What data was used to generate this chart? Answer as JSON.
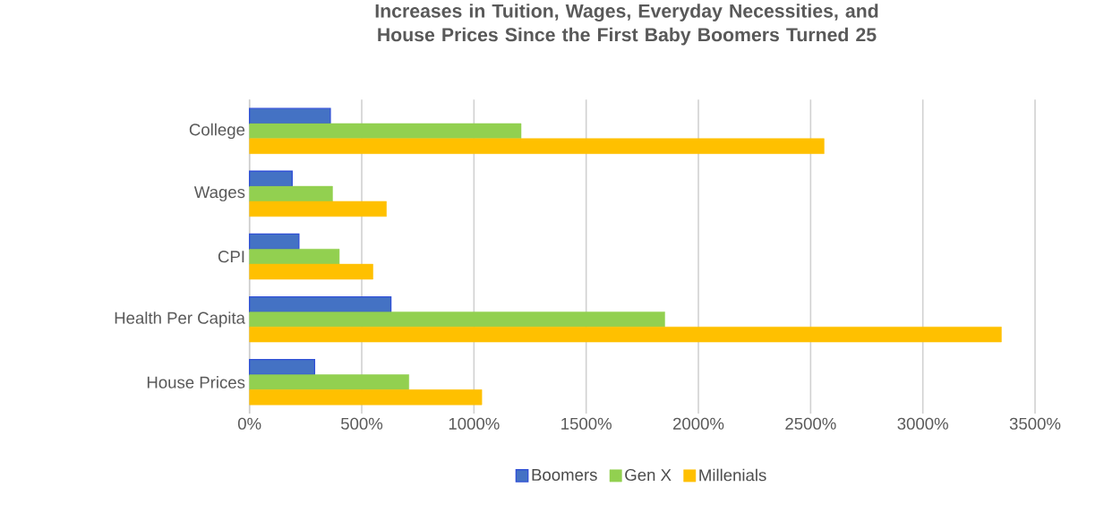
{
  "chart_data": {
    "type": "bar",
    "orientation": "horizontal",
    "title": "Increases in Tuition, Wages, Everyday Necessities, and House Prices Since the First Baby Boomers Turned 25",
    "categories": [
      "College",
      "Wages",
      "CPI",
      "Health Per Capita",
      "House Prices"
    ],
    "series": [
      {
        "name": "Boomers",
        "color": "#4472c4",
        "values": [
          360,
          190,
          220,
          630,
          290
        ]
      },
      {
        "name": "Gen X",
        "color": "#92d050",
        "values": [
          1210,
          370,
          400,
          1850,
          710
        ]
      },
      {
        "name": "Millenials",
        "color": "#ffc000",
        "values": [
          2560,
          610,
          550,
          3350,
          1035
        ]
      }
    ],
    "xlim": [
      0,
      3500
    ],
    "xticks": [
      {
        "value": 0,
        "label": "0%"
      },
      {
        "value": 500,
        "label": "500%"
      },
      {
        "value": 1000,
        "label": "1000%"
      },
      {
        "value": 1500,
        "label": "1500%"
      },
      {
        "value": 2000,
        "label": "2000%"
      },
      {
        "value": 2500,
        "label": "2500%"
      },
      {
        "value": 3000,
        "label": "3000%"
      },
      {
        "value": 3500,
        "label": "3500%"
      }
    ],
    "grid": "x",
    "legend": "bottom"
  }
}
